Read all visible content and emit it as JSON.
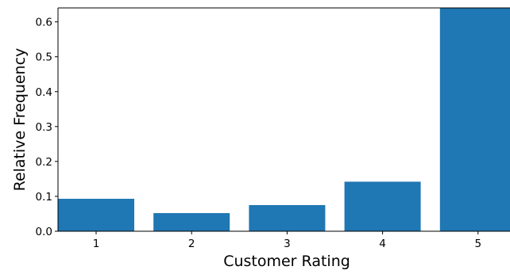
{
  "chart_data": {
    "type": "bar",
    "categories": [
      "1",
      "2",
      "3",
      "4",
      "5"
    ],
    "values": [
      0.093,
      0.052,
      0.075,
      0.142,
      0.64
    ],
    "title": "",
    "xlabel": "Customer Rating",
    "ylabel": "Relative Frequency",
    "ylim": [
      0,
      0.64
    ],
    "yticks": [
      "0.0",
      "0.1",
      "0.2",
      "0.3",
      "0.4",
      "0.5",
      "0.6"
    ],
    "bar_color": "#1f77b4",
    "grid": false,
    "legend": "none"
  }
}
